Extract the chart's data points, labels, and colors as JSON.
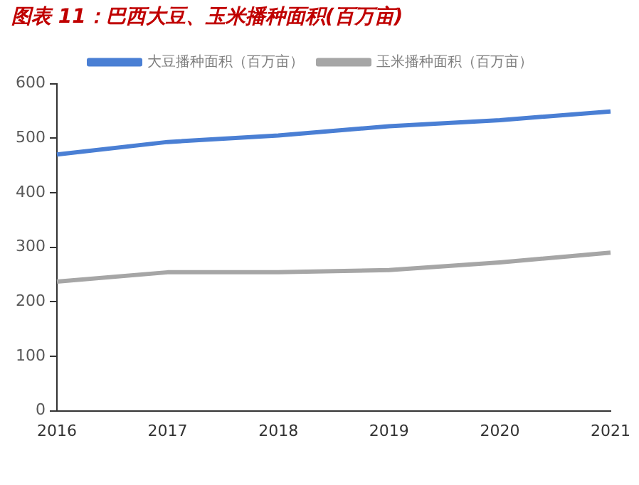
{
  "chart_data": {
    "type": "line",
    "title": "图表 11：巴西大豆、玉米播种面积(百万亩)",
    "categories": [
      "2016",
      "2017",
      "2018",
      "2019",
      "2020",
      "2021"
    ],
    "series": [
      {
        "name": "大豆播种面积（百万亩）",
        "color": "#4a7fd4",
        "values": [
          470,
          493,
          505,
          522,
          533,
          549
        ]
      },
      {
        "name": "玉米播种面积（百万亩）",
        "color": "#a6a6a6",
        "values": [
          237,
          254,
          254,
          258,
          272,
          290
        ]
      }
    ],
    "ylim": [
      0,
      600
    ],
    "yticks": [
      0,
      100,
      200,
      300,
      400,
      500,
      600
    ],
    "grid": false,
    "legend": "top",
    "marker": "none"
  }
}
